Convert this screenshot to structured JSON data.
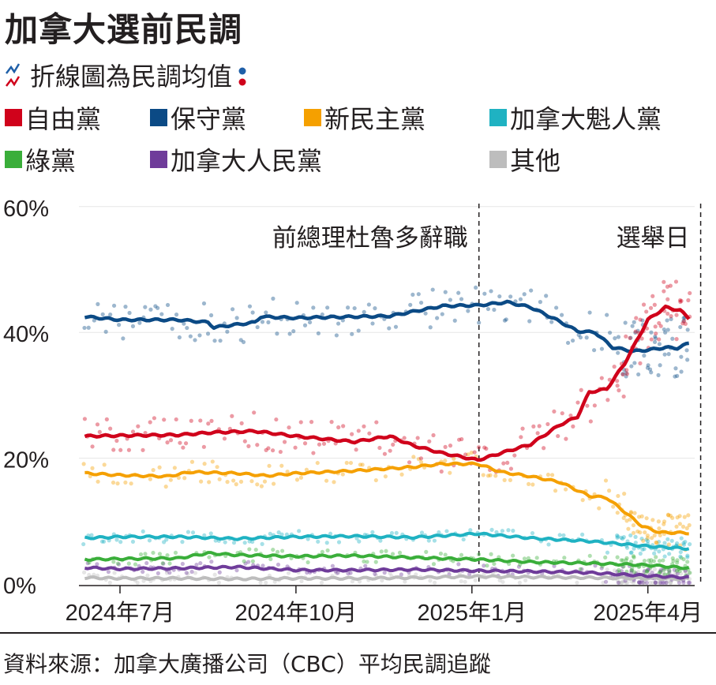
{
  "title": "加拿大選前民調",
  "subtitle": "折線圖為民調均值",
  "source": "資料來源：加拿大廣播公司（CBC）平均民調追蹤",
  "legend": [
    {
      "label": "自由黨",
      "color": "#d0021b"
    },
    {
      "label": "保守黨",
      "color": "#0b4a85"
    },
    {
      "label": "新民主黨",
      "color": "#f5a000"
    },
    {
      "label": "加拿大魁人黨",
      "color": "#1fb2c2"
    },
    {
      "label": "綠黨",
      "color": "#3aae3a"
    },
    {
      "label": "加拿大人民黨",
      "color": "#6f3c9a"
    },
    {
      "label": "其他",
      "color": "#bdbdbd"
    }
  ],
  "chart_data": {
    "type": "line",
    "title": "加拿大選前民調",
    "xlabel": "",
    "ylabel": "",
    "x_unit": "months since 2024-07-01",
    "xlim": [
      -0.6,
      9.95
    ],
    "ylim": [
      0,
      60
    ],
    "yticks": [
      {
        "v": 0,
        "label": "0%"
      },
      {
        "v": 20,
        "label": "20%"
      },
      {
        "v": 40,
        "label": "40%"
      },
      {
        "v": 60,
        "label": "60%"
      }
    ],
    "xticks": [
      {
        "v": 0,
        "label": "2024年7月"
      },
      {
        "v": 3,
        "label": "2024年10月"
      },
      {
        "v": 6,
        "label": "2025年1月"
      },
      {
        "v": 9,
        "label": "2025年4月"
      }
    ],
    "annotations": [
      {
        "x": 6.12,
        "label": "前總理杜魯多辭職"
      },
      {
        "x": 9.9,
        "label": "選舉日"
      }
    ],
    "series": [
      {
        "name": "保守黨",
        "color": "#0b4a85",
        "points": [
          [
            -0.6,
            42.5
          ],
          [
            0,
            42
          ],
          [
            1,
            42
          ],
          [
            1.5,
            41.6
          ],
          [
            1.6,
            40.8
          ],
          [
            2.3,
            41.6
          ],
          [
            2.4,
            42.5
          ],
          [
            3,
            42.3
          ],
          [
            4,
            42.5
          ],
          [
            4.6,
            42.6
          ],
          [
            5.5,
            44.2
          ],
          [
            6.1,
            44.3
          ],
          [
            6.6,
            44.8
          ],
          [
            7,
            44
          ],
          [
            7.4,
            42.2
          ],
          [
            7.8,
            40.2
          ],
          [
            8.1,
            40
          ],
          [
            8.4,
            37.6
          ],
          [
            8.75,
            37
          ],
          [
            9.0,
            37.2
          ],
          [
            9.3,
            37.6
          ],
          [
            9.5,
            37.5
          ],
          [
            9.73,
            38.4
          ]
        ]
      },
      {
        "name": "自由黨",
        "color": "#d0021b",
        "points": [
          [
            -0.6,
            23.5
          ],
          [
            0,
            23.6
          ],
          [
            1,
            23.7
          ],
          [
            1.6,
            24.1
          ],
          [
            2.3,
            24.3
          ],
          [
            3,
            23.5
          ],
          [
            4,
            22.6
          ],
          [
            4.6,
            23.5
          ],
          [
            5,
            22
          ],
          [
            5.5,
            20.8
          ],
          [
            6.1,
            19.7
          ],
          [
            6.6,
            21.1
          ],
          [
            7,
            22.2
          ],
          [
            7.5,
            25.3
          ],
          [
            7.8,
            26.6
          ],
          [
            8.0,
            30.5
          ],
          [
            8.3,
            31
          ],
          [
            8.6,
            35
          ],
          [
            8.8,
            38.5
          ],
          [
            9.0,
            42
          ],
          [
            9.3,
            44
          ],
          [
            9.55,
            43.5
          ],
          [
            9.73,
            42
          ]
        ]
      },
      {
        "name": "新民主黨",
        "color": "#f5a000",
        "points": [
          [
            -0.6,
            17.6
          ],
          [
            0,
            17.3
          ],
          [
            0.8,
            17.1
          ],
          [
            1.2,
            17.8
          ],
          [
            2,
            17.6
          ],
          [
            2.5,
            17.2
          ],
          [
            3,
            17.6
          ],
          [
            4,
            18
          ],
          [
            5,
            18.6
          ],
          [
            5.5,
            19.1
          ],
          [
            6.1,
            19.1
          ],
          [
            6.5,
            17.8
          ],
          [
            7,
            17.1
          ],
          [
            7.5,
            16.2
          ],
          [
            8,
            14
          ],
          [
            8.3,
            13.7
          ],
          [
            8.6,
            11.5
          ],
          [
            8.9,
            9.2
          ],
          [
            9.2,
            8.2
          ],
          [
            9.73,
            8.1
          ]
        ]
      },
      {
        "name": "加拿大魁人黨",
        "color": "#1fb2c2",
        "points": [
          [
            -0.6,
            7.3
          ],
          [
            0,
            7.5
          ],
          [
            1,
            7.5
          ],
          [
            2,
            7.2
          ],
          [
            3,
            7.5
          ],
          [
            4,
            7.6
          ],
          [
            5,
            7.4
          ],
          [
            6.1,
            8.0
          ],
          [
            7,
            7.3
          ],
          [
            8,
            6.8
          ],
          [
            9,
            6
          ],
          [
            9.73,
            5.6
          ]
        ]
      },
      {
        "name": "綠黨",
        "color": "#3aae3a",
        "points": [
          [
            -0.6,
            3.9
          ],
          [
            0,
            4
          ],
          [
            1,
            4.1
          ],
          [
            1.5,
            4.9
          ],
          [
            2,
            4.6
          ],
          [
            3,
            4.4
          ],
          [
            4,
            4.5
          ],
          [
            5,
            4.2
          ],
          [
            6.1,
            3.9
          ],
          [
            7,
            3.5
          ],
          [
            8,
            3.3
          ],
          [
            9,
            3
          ],
          [
            9.73,
            2.5
          ]
        ]
      },
      {
        "name": "加拿大人民黨",
        "color": "#6f3c9a",
        "points": [
          [
            -0.6,
            2.6
          ],
          [
            0,
            2.4
          ],
          [
            1,
            2.5
          ],
          [
            2,
            2.7
          ],
          [
            3,
            2.2
          ],
          [
            4,
            2.2
          ],
          [
            5,
            2.3
          ],
          [
            6.1,
            2.1
          ],
          [
            7,
            2
          ],
          [
            8,
            1.8
          ],
          [
            9,
            1.3
          ],
          [
            9.73,
            1.0
          ]
        ]
      },
      {
        "name": "其他",
        "color": "#bdbdbd",
        "points": [
          [
            -0.6,
            1.0
          ],
          [
            0,
            0.9
          ],
          [
            1,
            0.9
          ],
          [
            2,
            0.8
          ],
          [
            3,
            0.9
          ],
          [
            4,
            0.9
          ],
          [
            5,
            1.0
          ],
          [
            6.1,
            1.2
          ],
          [
            7,
            1.1
          ],
          [
            8,
            1.0
          ],
          [
            9,
            0.9
          ],
          [
            9.73,
            0.8
          ]
        ]
      }
    ]
  }
}
